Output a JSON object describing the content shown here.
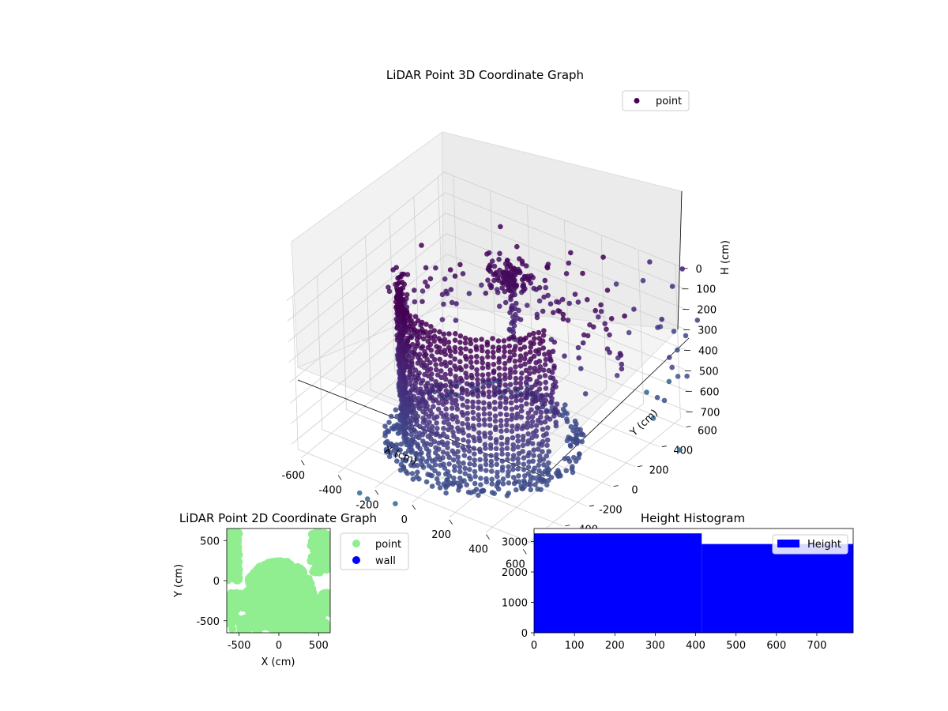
{
  "chart_data": [
    {
      "type": "scatter",
      "projection": "3d",
      "title": "LiDAR Point 3D Coordinate Graph",
      "xlabel": "X (cm)",
      "ylabel": "Y (cm)",
      "zlabel": "H (cm)",
      "xlim": [
        -650,
        650
      ],
      "ylim": [
        -650,
        650
      ],
      "zlim": [
        0,
        750
      ],
      "z_inverted": true,
      "xticks": [
        "-600",
        "-400",
        "-200",
        "0",
        "200",
        "400",
        "600"
      ],
      "yticks": [
        "-600",
        "-400",
        "-200",
        "0",
        "200",
        "400",
        "600"
      ],
      "zticks": [
        "0",
        "100",
        "200",
        "300",
        "400",
        "500",
        "600",
        "700"
      ],
      "colormap": "viridis",
      "legend": [
        {
          "name": "point",
          "color": "#440154"
        }
      ],
      "legend_placement": "upper right",
      "grid": true,
      "description_of_points": {
        "wall_radius": 400,
        "wall_arc_degrees": [
          200,
          340
        ],
        "height_range": [
          0,
          750
        ],
        "pillar_center": [
          -100,
          300
        ],
        "pillar_height_range": [
          150,
          480
        ],
        "outliers_high_x_y": true
      }
    },
    {
      "type": "scatter",
      "title": "LiDAR Point 2D Coordinate Graph",
      "xlabel": "X (cm)",
      "ylabel": "Y (cm)",
      "xlim": [
        -650,
        650
      ],
      "ylim": [
        -650,
        650
      ],
      "xticks": [
        "-500",
        "0",
        "500"
      ],
      "yticks": [
        "-500",
        "0",
        "500"
      ],
      "series": [
        {
          "name": "point",
          "color": "#90ee90"
        },
        {
          "name": "wall",
          "color": "#0000ff"
        }
      ],
      "legend_placement": "outside right"
    },
    {
      "type": "bar",
      "title": "Height Histogram",
      "xlim": [
        0,
        790
      ],
      "ylim": [
        0,
        3430
      ],
      "xticks": [
        "0",
        "100",
        "200",
        "300",
        "400",
        "500",
        "600",
        "700"
      ],
      "yticks": [
        "0",
        "1000",
        "2000",
        "3000"
      ],
      "bins": [
        {
          "x0": 0,
          "x1": 415,
          "count": 3270
        },
        {
          "x0": 415,
          "x1": 790,
          "count": 2920
        }
      ],
      "series": [
        {
          "name": "Height",
          "color": "#0000ff"
        }
      ],
      "legend_placement": "upper right"
    }
  ]
}
